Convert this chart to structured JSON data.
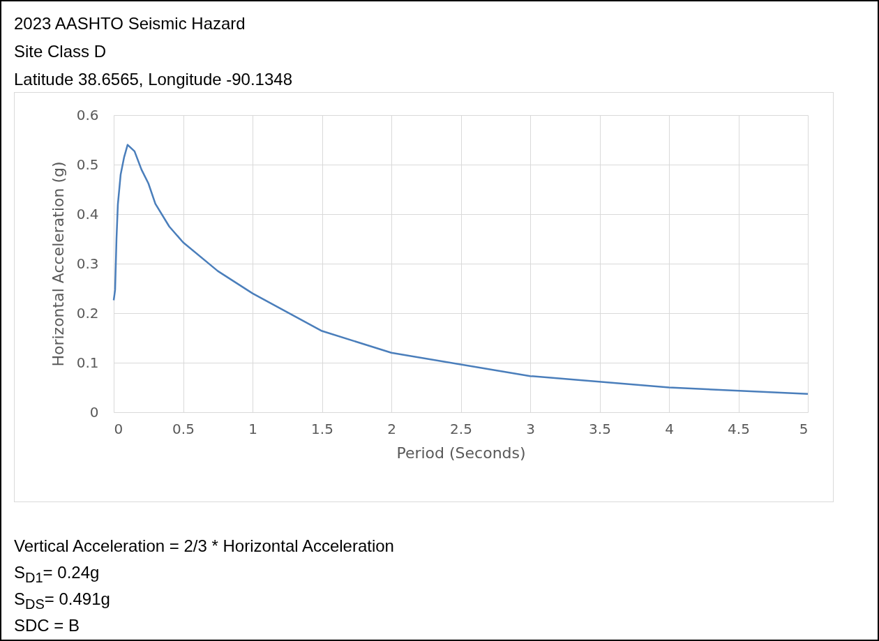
{
  "chart_data": {
    "type": "line",
    "title": "2023 AASHTO Seismic Hazard",
    "subtitle": "Site Class D\nLatitude 38.6565, Longitude -90.1348",
    "xlabel": "Period (Seconds)",
    "ylabel": "Horizontal Acceleration (g)",
    "x": [
      0,
      0.01,
      0.02,
      0.03,
      0.05,
      0.075,
      0.1,
      0.15,
      0.2,
      0.25,
      0.3,
      0.4,
      0.5,
      0.75,
      1,
      1.5,
      2,
      3,
      4,
      5
    ],
    "series": [
      {
        "color": "#4a7ebb",
        "values": [
          0.226,
          0.247,
          0.35,
          0.42,
          0.48,
          0.515,
          0.54,
          0.527,
          0.49,
          0.462,
          0.421,
          0.375,
          0.343,
          0.285,
          0.24,
          0.164,
          0.12,
          0.073,
          0.05,
          0.037
        ]
      }
    ],
    "xlim": [
      0,
      5
    ],
    "xticks": [
      0,
      0.5,
      1,
      1.5,
      2,
      2.5,
      3,
      3.5,
      4,
      4.5,
      5
    ],
    "ylim": [
      0,
      0.6
    ],
    "yticks": [
      0,
      0.1,
      0.2,
      0.3,
      0.4,
      0.5,
      0.6
    ],
    "grid": true,
    "marker": "none",
    "line_style": "solid",
    "annotations": [
      "Vertical Acceleration = 2/3 * Horizontal Acceleration",
      "S$_{D1}$= 0.24g",
      "S$_{DS}$= 0.491g",
      "SDC = B"
    ]
  }
}
